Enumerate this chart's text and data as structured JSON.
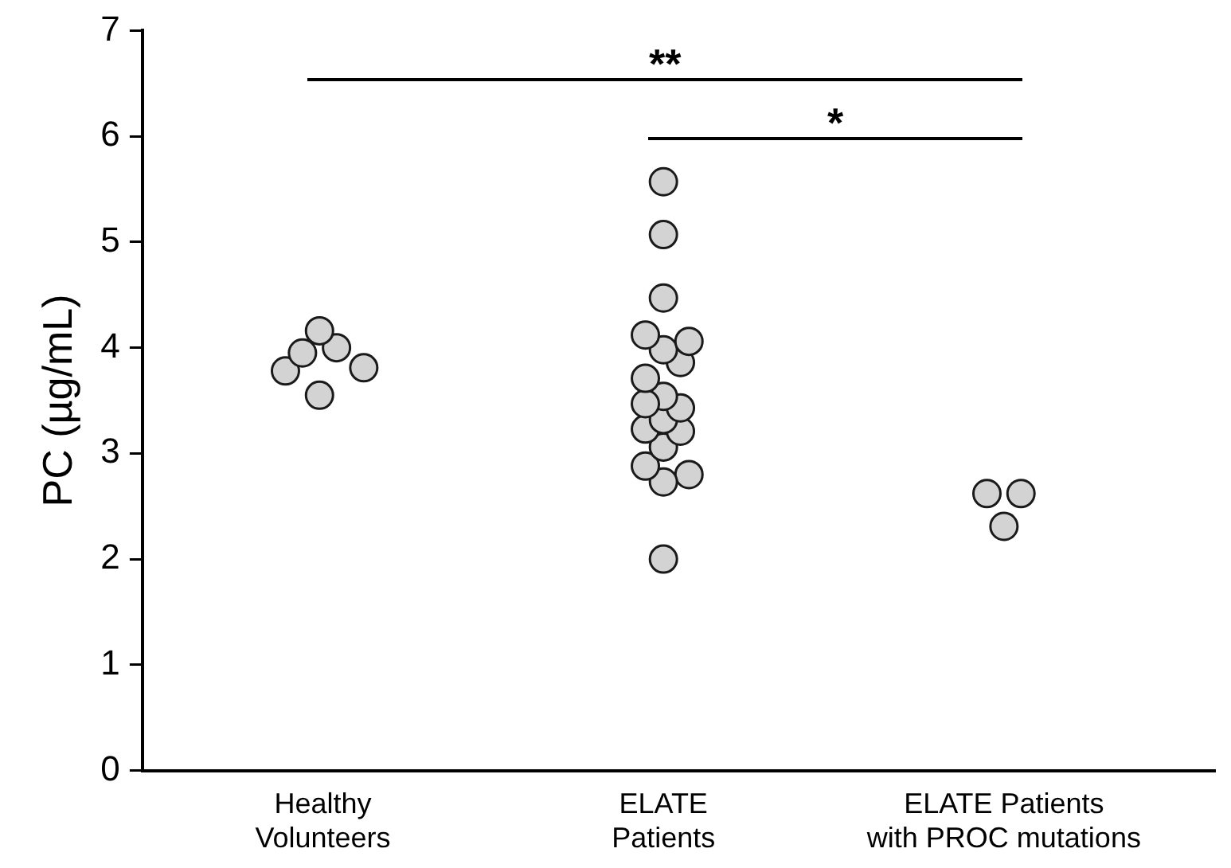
{
  "chart_data": {
    "type": "scatter",
    "ylabel": "PC (µg/mL)",
    "categories": [
      "Healthy Volunteers",
      "ELATE Patients",
      "ELATE Patients with PROC mutations"
    ],
    "ylim": [
      0,
      7
    ],
    "yticks": [
      0,
      1,
      2,
      3,
      4,
      5,
      6,
      7
    ],
    "series": [
      {
        "color": "#d3d3d3",
        "values": [
          4.16,
          5.57,
          2.62
        ]
      },
      {
        "color": "#d3d3d3",
        "values": [
          3.95,
          5.07,
          2.62
        ]
      },
      {
        "color": "#d3d3d3",
        "values": [
          4.0,
          4.47,
          2.31
        ]
      },
      {
        "color": "#d3d3d3",
        "values": [
          3.78,
          4.12,
          null
        ]
      },
      {
        "color": "#d3d3d3",
        "values": [
          3.81,
          4.06,
          null
        ]
      },
      {
        "color": "#d3d3d3",
        "values": [
          3.55,
          3.98,
          null
        ]
      },
      {
        "color": "#d3d3d3",
        "values": [
          null,
          3.86,
          null
        ]
      },
      {
        "color": "#d3d3d3",
        "values": [
          null,
          3.71,
          null
        ]
      },
      {
        "color": "#d3d3d3",
        "values": [
          null,
          3.47,
          null
        ]
      },
      {
        "color": "#d3d3d3",
        "values": [
          null,
          3.54,
          null
        ]
      },
      {
        "color": "#d3d3d3",
        "values": [
          null,
          3.43,
          null
        ]
      },
      {
        "color": "#d3d3d3",
        "values": [
          null,
          3.32,
          null
        ]
      },
      {
        "color": "#d3d3d3",
        "values": [
          null,
          3.23,
          null
        ]
      },
      {
        "color": "#d3d3d3",
        "values": [
          null,
          3.21,
          null
        ]
      },
      {
        "color": "#d3d3d3",
        "values": [
          null,
          3.06,
          null
        ]
      },
      {
        "color": "#d3d3d3",
        "values": [
          null,
          2.88,
          null
        ]
      },
      {
        "color": "#d3d3d3",
        "values": [
          null,
          2.73,
          null
        ]
      },
      {
        "color": "#d3d3d3",
        "values": [
          null,
          2.8,
          null
        ]
      },
      {
        "color": "#d3d3d3",
        "values": [
          null,
          2.0,
          null
        ]
      }
    ],
    "marker": "circle",
    "grid": false,
    "legend": false,
    "annotations": [
      "**",
      "*"
    ]
  }
}
